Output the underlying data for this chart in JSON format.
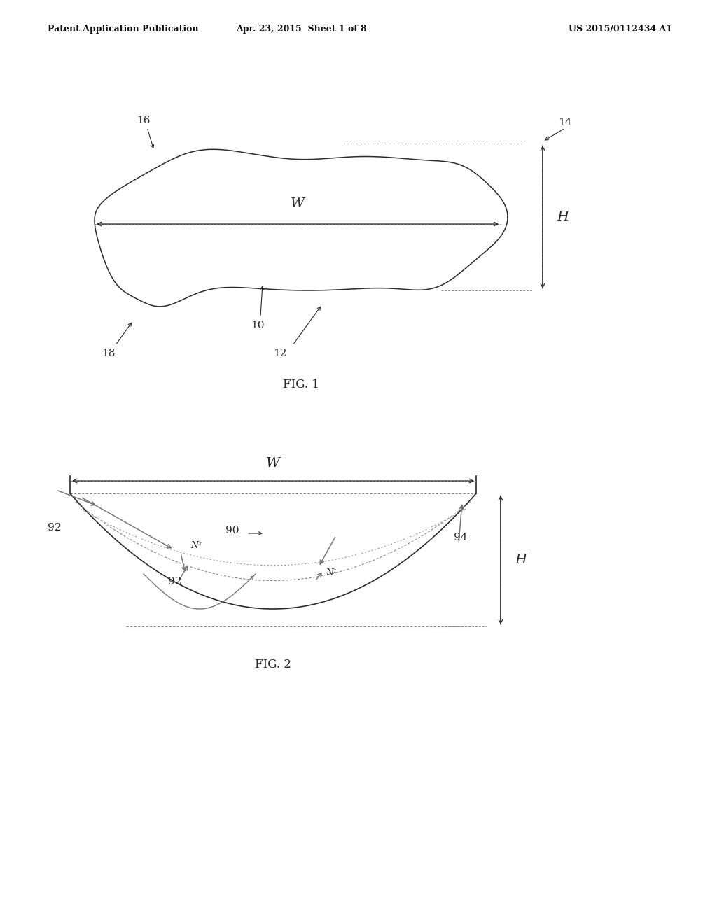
{
  "background_color": "#ffffff",
  "header_left": "Patent Application Publication",
  "header_center": "Apr. 23, 2015  Sheet 1 of 8",
  "header_right": "US 2015/0112434 A1",
  "fig1_caption": "FIG. 1",
  "fig2_caption": "FIG. 2",
  "line_color": "#2a2a2a",
  "dim_line_color": "#2a2a2a",
  "dotted_color": "#888888",
  "gray_color": "#777777"
}
